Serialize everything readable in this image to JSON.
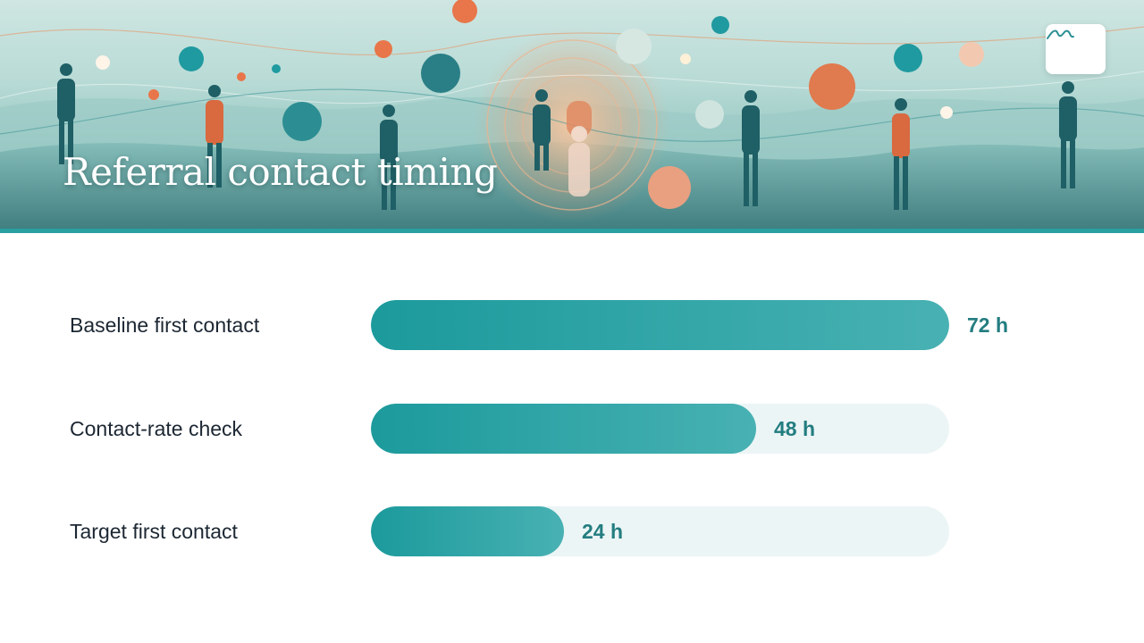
{
  "title": "Referral contact timing",
  "chart_data": {
    "type": "bar",
    "orientation": "horizontal",
    "categories": [
      "Baseline first contact",
      "Contact-rate check",
      "Target first contact"
    ],
    "values": [
      72,
      48,
      24
    ],
    "value_labels": [
      "72 h",
      "48 h",
      "24 h"
    ],
    "xlim": [
      0,
      72
    ],
    "grid": false
  },
  "colors": {
    "bar": "#2a9fa0",
    "track": "#ecf5f6",
    "value_text": "#237d80",
    "accent_rule": "#2a9fa0"
  },
  "logo": {
    "icon": "mountain-signature-logo"
  }
}
